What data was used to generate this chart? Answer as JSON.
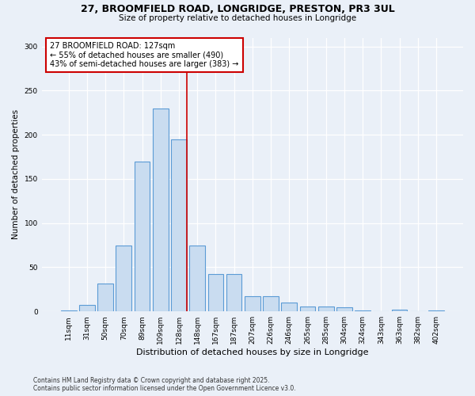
{
  "title_line1": "27, BROOMFIELD ROAD, LONGRIDGE, PRESTON, PR3 3UL",
  "title_line2": "Size of property relative to detached houses in Longridge",
  "xlabel": "Distribution of detached houses by size in Longridge",
  "ylabel": "Number of detached properties",
  "bar_labels": [
    "11sqm",
    "31sqm",
    "50sqm",
    "70sqm",
    "89sqm",
    "109sqm",
    "128sqm",
    "148sqm",
    "167sqm",
    "187sqm",
    "207sqm",
    "226sqm",
    "246sqm",
    "265sqm",
    "285sqm",
    "304sqm",
    "324sqm",
    "343sqm",
    "363sqm",
    "382sqm",
    "402sqm"
  ],
  "bar_values": [
    1,
    7,
    32,
    75,
    170,
    230,
    195,
    75,
    42,
    42,
    17,
    17,
    10,
    6,
    6,
    5,
    1,
    0,
    2,
    0,
    1
  ],
  "bar_color": "#C9DCF0",
  "bar_edge_color": "#5B9BD5",
  "property_label": "27 BROOMFIELD ROAD: 127sqm",
  "stat1": "← 55% of detached houses are smaller (490)",
  "stat2": "43% of semi-detached houses are larger (383) →",
  "vline_color": "#CC0000",
  "vline_x_index": 6,
  "annotation_box_color": "#CC0000",
  "background_color": "#EAF0F8",
  "footnote1": "Contains HM Land Registry data © Crown copyright and database right 2025.",
  "footnote2": "Contains public sector information licensed under the Open Government Licence v3.0.",
  "ylim": [
    0,
    310
  ],
  "yticks": [
    0,
    50,
    100,
    150,
    200,
    250,
    300
  ]
}
